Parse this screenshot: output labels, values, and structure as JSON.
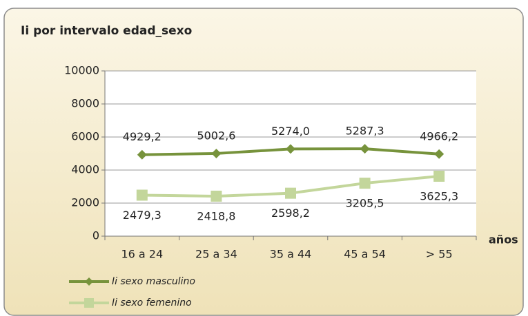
{
  "chart_data": {
    "type": "line",
    "title": "Ii por intervalo edad_sexo",
    "x_label": "años",
    "categories": [
      "16 a 24",
      "25 a 34",
      "35 a 44",
      "45 a 54",
      "> 55"
    ],
    "series": [
      {
        "name": "Ii sexo masculino",
        "color": "#77933c",
        "marker": "diamond",
        "values": [
          4929.2,
          5002.6,
          5274.0,
          5287.3,
          4966.2
        ],
        "value_labels": [
          "4929,2",
          "5002,6",
          "5274,0",
          "5287,3",
          "4966,2"
        ],
        "label_position": "above"
      },
      {
        "name": "Ii sexo femenino",
        "color": "#c3d69b",
        "marker": "square",
        "values": [
          2479.3,
          2418.8,
          2598.2,
          3205.5,
          3625.3
        ],
        "value_labels": [
          "2479,3",
          "2418,8",
          "2598,2",
          "3205,5",
          "3625,3"
        ],
        "label_position": "below"
      }
    ],
    "ylim": [
      0,
      10000
    ],
    "yticks": [
      0,
      2000,
      4000,
      6000,
      8000,
      10000
    ],
    "grid": true
  }
}
